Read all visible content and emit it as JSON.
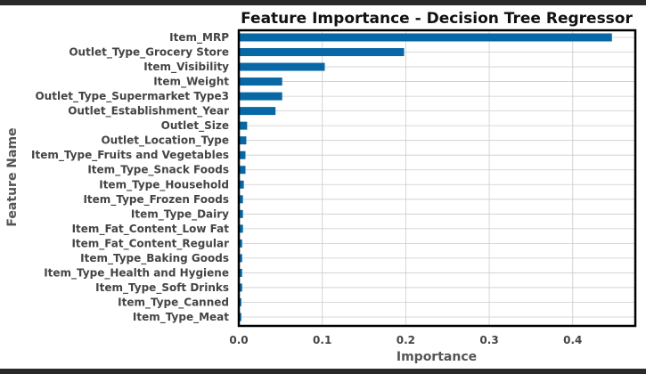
{
  "colors": {
    "bar": "#0868a6",
    "frame": "#2a2a2a"
  },
  "chart_data": {
    "type": "bar",
    "orientation": "horizontal",
    "title": "Feature Importance - Decision Tree Regressor",
    "xlabel": "Importance",
    "ylabel": "Feature Name",
    "xlim": [
      0,
      0.475
    ],
    "xticks": [
      "0.0",
      "0.1",
      "0.2",
      "0.3",
      "0.4"
    ],
    "xtick_values": [
      0,
      0.1,
      0.2,
      0.3,
      0.4
    ],
    "grid": true,
    "categories": [
      "Item_MRP",
      "Outlet_Type_Grocery Store",
      "Item_Visibility",
      "Item_Weight",
      "Outlet_Type_Supermarket Type3",
      "Outlet_Establishment_Year",
      "Outlet_Size",
      "Outlet_Location_Type",
      "Item_Type_Fruits and Vegetables",
      "Item_Type_Snack Foods",
      "Item_Type_Household",
      "Item_Type_Frozen Foods",
      "Item_Type_Dairy",
      "Item_Fat_Content_Low Fat",
      "Item_Fat_Content_Regular",
      "Item_Type_Baking Goods",
      "Item_Type_Health and Hygiene",
      "Item_Type_Soft Drinks",
      "Item_Type_Canned",
      "Item_Type_Meat"
    ],
    "values": [
      0.447,
      0.198,
      0.103,
      0.052,
      0.052,
      0.044,
      0.01,
      0.009,
      0.008,
      0.008,
      0.006,
      0.005,
      0.005,
      0.005,
      0.004,
      0.004,
      0.004,
      0.004,
      0.003,
      0.003
    ]
  }
}
